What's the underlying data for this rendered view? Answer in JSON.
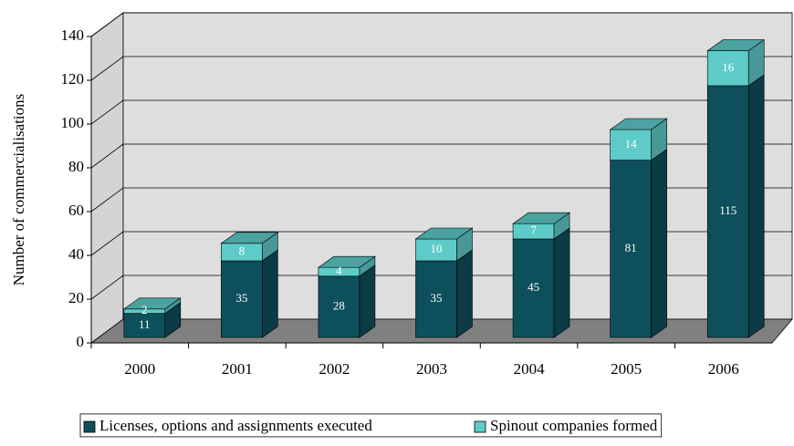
{
  "chart_data": {
    "type": "bar3d_stacked",
    "ylabel": "Number of commercialisations",
    "categories": [
      "2000",
      "2001",
      "2002",
      "2003",
      "2004",
      "2005",
      "2006"
    ],
    "series": [
      {
        "name": "Licenses, options and assignments executed",
        "color": "#0e4f5c",
        "values": [
          11,
          35,
          28,
          35,
          45,
          81,
          115
        ]
      },
      {
        "name": "Spinout companies formed",
        "color": "#5ecbc9",
        "values": [
          2,
          8,
          4,
          10,
          7,
          14,
          16
        ]
      }
    ],
    "ylim": [
      0,
      140
    ],
    "yticks": [
      0,
      20,
      40,
      60,
      80,
      100,
      120,
      140
    ],
    "grid": true,
    "legend": "bottom"
  }
}
